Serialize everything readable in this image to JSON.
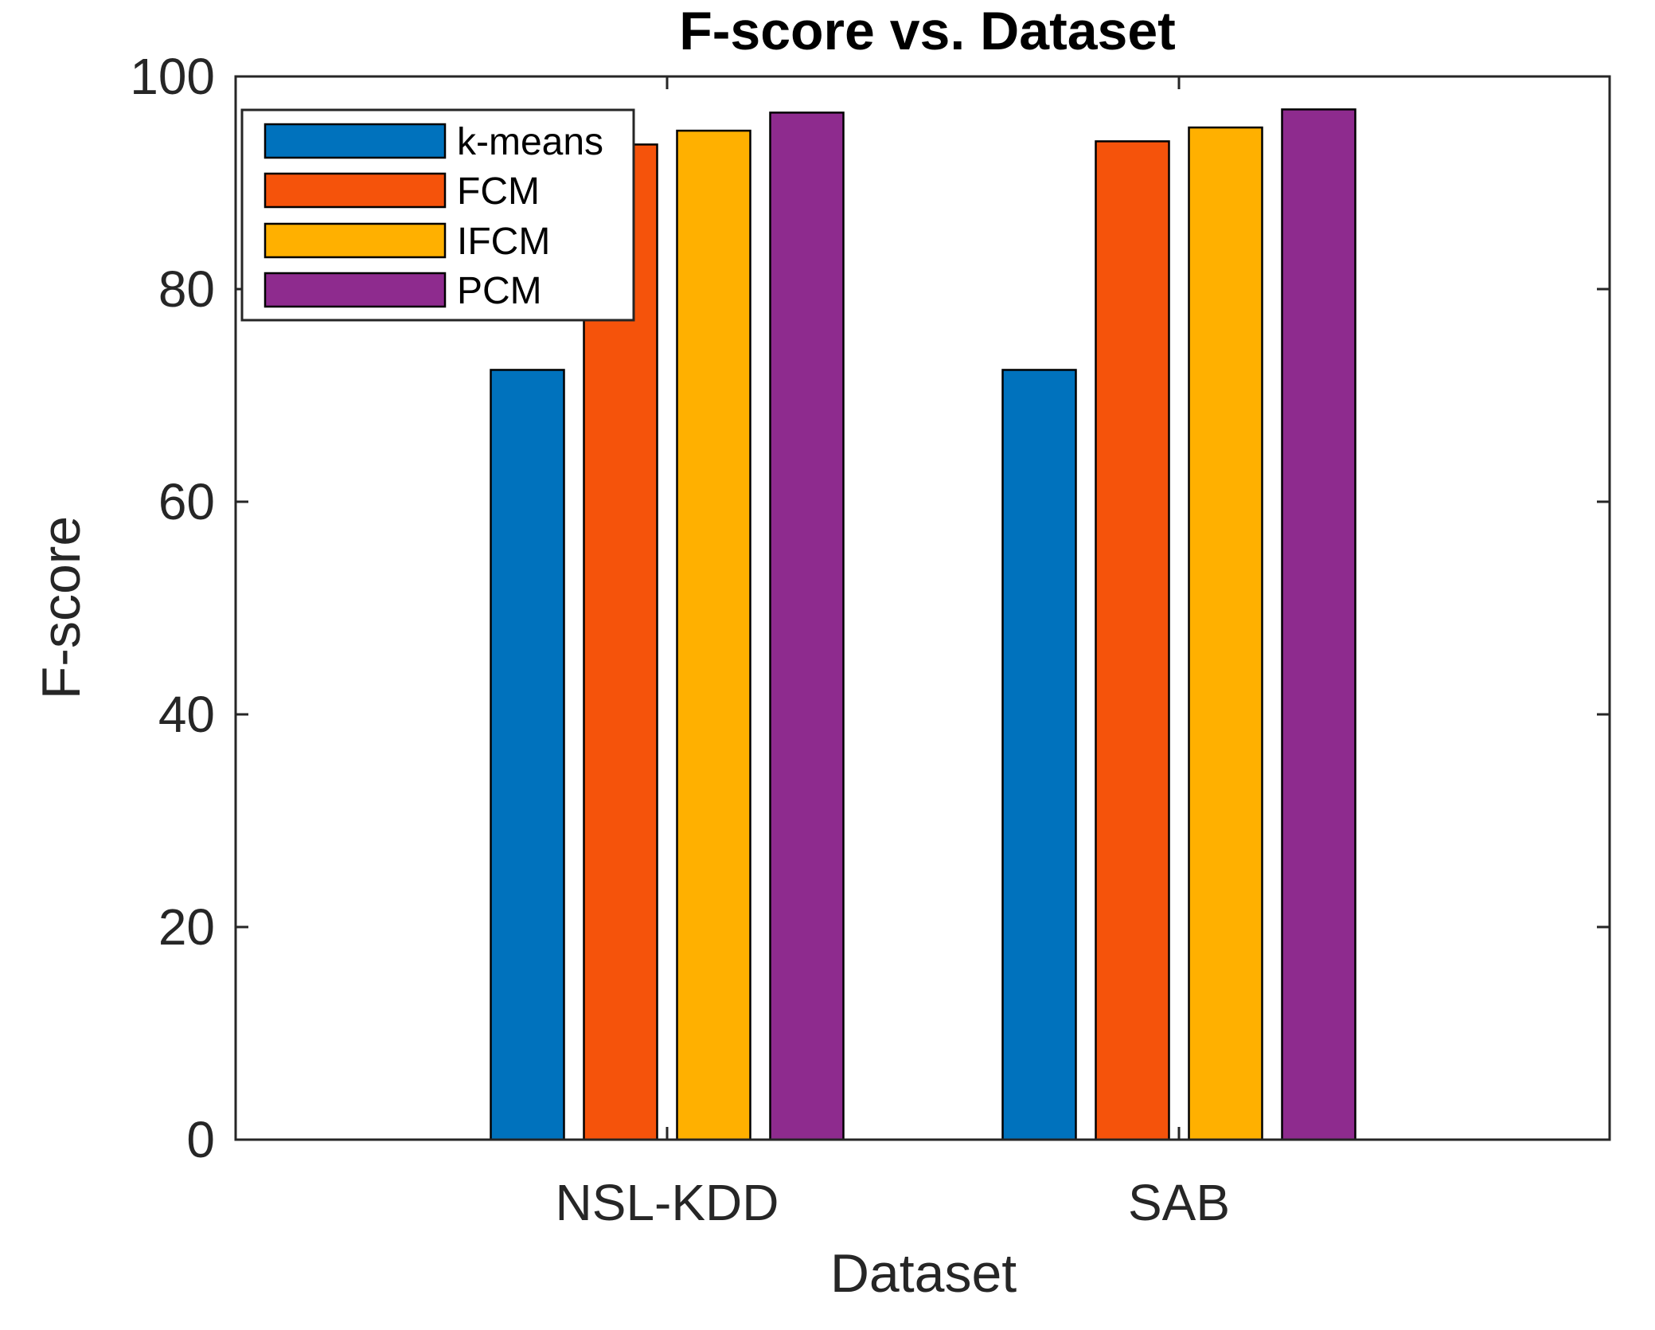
{
  "chart_data": {
    "type": "bar",
    "title": "F-score vs. Dataset",
    "xlabel": "Dataset",
    "ylabel": "F-score",
    "ylim": [
      0,
      100
    ],
    "yticks": [
      "0",
      "20",
      "40",
      "60",
      "80",
      "100"
    ],
    "categories": [
      "NSL-KDD",
      "SAB"
    ],
    "series": [
      {
        "name": "k-means",
        "color": "#0072BD",
        "values": [
          72.4,
          72.4
        ]
      },
      {
        "name": "FCM",
        "color": "#F5530B",
        "values": [
          93.6,
          93.9
        ]
      },
      {
        "name": "IFCM",
        "color": "#FFB000",
        "values": [
          94.9,
          95.2
        ]
      },
      {
        "name": "PCM",
        "color": "#8E2B8E",
        "values": [
          96.6,
          96.9
        ]
      }
    ],
    "legend": {
      "position": "top-left"
    },
    "grid": false
  }
}
